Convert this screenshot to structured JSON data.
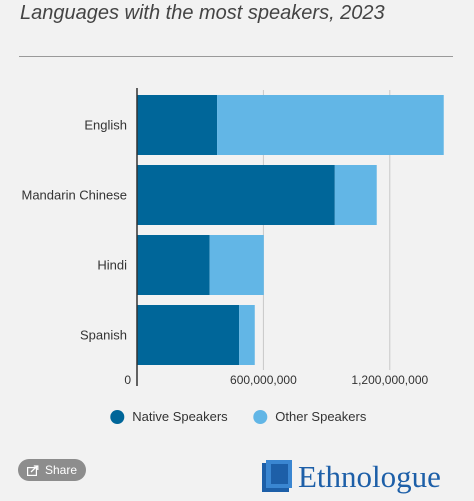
{
  "header": {
    "title": "Languages with the most speakers, 2023"
  },
  "chart_data": {
    "type": "bar",
    "orientation": "horizontal",
    "stacked": true,
    "categories": [
      "English",
      "Mandarin Chinese",
      "Hindi",
      "Spanish"
    ],
    "series": [
      {
        "name": "Native Speakers",
        "color": "#006699",
        "values": [
          380000000,
          939000000,
          345000000,
          485000000
        ]
      },
      {
        "name": "Other Speakers",
        "color": "#62b6e6",
        "values": [
          1076000000,
          199000000,
          257000000,
          74000000
        ]
      }
    ],
    "xlim": [
      0,
      1500000000
    ],
    "xticks": [
      0,
      600000000,
      1200000000
    ],
    "xtick_labels": [
      "0",
      "600,000,000",
      "1,200,000,000"
    ],
    "xlabel": "",
    "ylabel": "",
    "grid": true,
    "legend_position": "bottom"
  },
  "footer": {
    "share_label": "Share",
    "share_icon": "share-icon",
    "brand_name": "Ethnologue",
    "brand_icon": "ethnologue-logo"
  }
}
